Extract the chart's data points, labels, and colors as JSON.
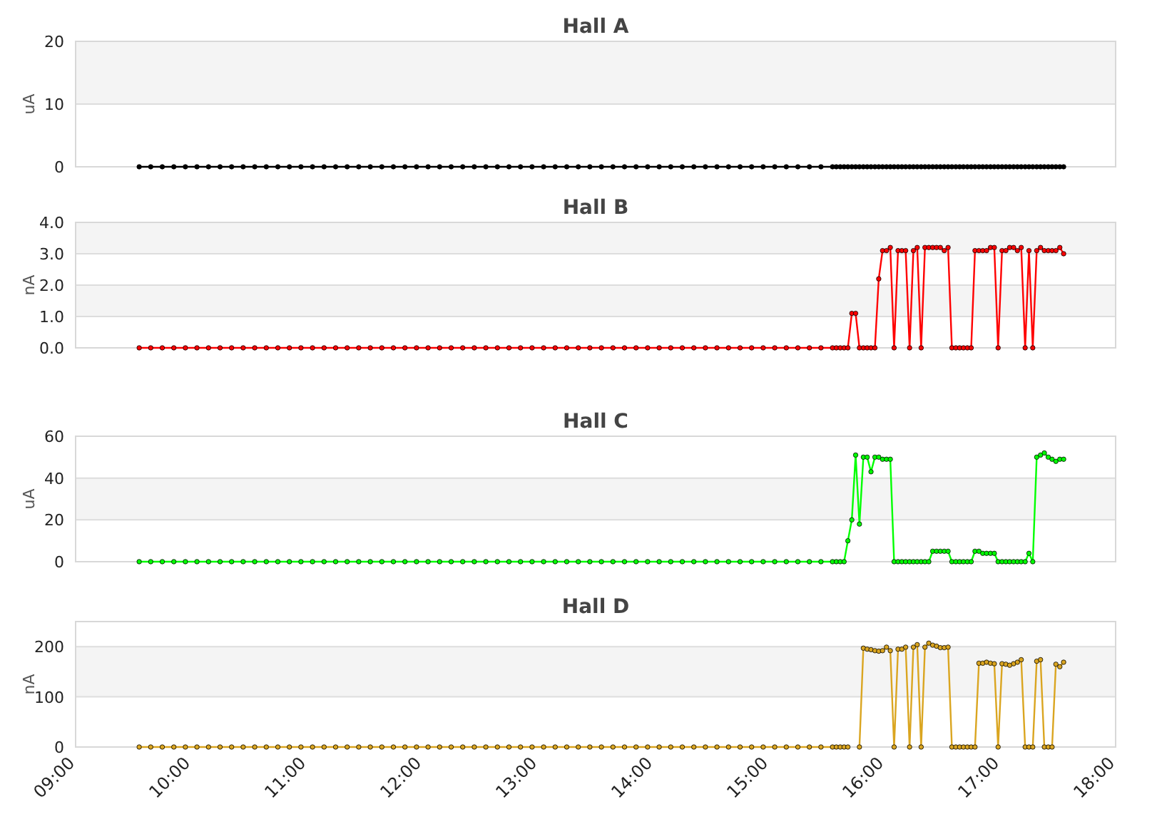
{
  "chart_data": [
    {
      "type": "line",
      "title": "Hall A",
      "ylabel": "uA",
      "xlim": [
        9,
        18
      ],
      "ylim": [
        0,
        20
      ],
      "yticks": [
        0,
        10,
        20
      ],
      "tick_labels": "y",
      "grid": "y",
      "marker": "circle",
      "x": [
        9.55,
        9.65,
        9.75,
        9.85,
        9.95,
        10.05,
        10.15,
        10.25,
        10.35,
        10.45,
        10.55,
        10.65,
        10.75,
        10.85,
        10.95,
        11.05,
        11.15,
        11.25,
        11.35,
        11.45,
        11.55,
        11.65,
        11.75,
        11.85,
        11.95,
        12.05,
        12.15,
        12.25,
        12.35,
        12.45,
        12.55,
        12.65,
        12.75,
        12.85,
        12.95,
        13.05,
        13.15,
        13.25,
        13.35,
        13.45,
        13.55,
        13.65,
        13.75,
        13.85,
        13.95,
        14.05,
        14.15,
        14.25,
        14.35,
        14.45,
        14.55,
        14.65,
        14.75,
        14.85,
        14.95,
        15.05,
        15.15,
        15.25,
        15.35,
        15.45,
        15.55,
        15.583,
        15.617,
        15.65,
        15.683,
        15.717,
        15.75,
        15.783,
        15.817,
        15.85,
        15.883,
        15.917,
        15.95,
        15.983,
        16.017,
        16.05,
        16.083,
        16.117,
        16.15,
        16.183,
        16.217,
        16.25,
        16.283,
        16.317,
        16.35,
        16.383,
        16.417,
        16.45,
        16.483,
        16.517,
        16.55,
        16.583,
        16.617,
        16.65,
        16.683,
        16.717,
        16.75,
        16.783,
        16.817,
        16.85,
        16.883,
        16.917,
        16.95,
        16.983,
        17.017,
        17.05,
        17.083,
        17.117,
        17.15,
        17.183,
        17.217,
        17.25,
        17.283,
        17.317,
        17.35,
        17.383,
        17.417,
        17.45,
        17.483,
        17.517,
        17.55
      ],
      "series": [
        {
          "color": "#000000",
          "values": [
            0,
            0,
            0,
            0,
            0,
            0,
            0,
            0,
            0,
            0,
            0,
            0,
            0,
            0,
            0,
            0,
            0,
            0,
            0,
            0,
            0,
            0,
            0,
            0,
            0,
            0,
            0,
            0,
            0,
            0,
            0,
            0,
            0,
            0,
            0,
            0,
            0,
            0,
            0,
            0,
            0,
            0,
            0,
            0,
            0,
            0,
            0,
            0,
            0,
            0,
            0,
            0,
            0,
            0,
            0,
            0,
            0,
            0,
            0,
            0,
            0,
            0,
            0,
            0,
            0,
            0,
            0,
            0,
            0,
            0,
            0,
            0,
            0,
            0,
            0,
            0,
            0,
            0,
            0,
            0,
            0,
            0,
            0,
            0,
            0,
            0,
            0,
            0,
            0,
            0,
            0,
            0,
            0,
            0,
            0,
            0,
            0,
            0,
            0,
            0,
            0,
            0,
            0,
            0,
            0,
            0,
            0,
            0,
            0,
            0,
            0,
            0,
            0,
            0,
            0,
            0,
            0,
            0,
            0,
            0,
            0
          ]
        }
      ]
    },
    {
      "type": "line",
      "title": "Hall B",
      "ylabel": "nA",
      "xlim": [
        9,
        18
      ],
      "ylim": [
        0,
        4
      ],
      "yticks": [
        {
          "value": 0,
          "label": "0.0"
        },
        {
          "value": 1,
          "label": "1.0"
        },
        {
          "value": 2,
          "label": "2.0"
        },
        {
          "value": 3,
          "label": "3.0"
        },
        {
          "value": 4,
          "label": "4.0"
        }
      ],
      "tick_labels": "y",
      "grid": "y",
      "marker": "circle",
      "x": [
        9.55,
        9.65,
        9.75,
        9.85,
        9.95,
        10.05,
        10.15,
        10.25,
        10.35,
        10.45,
        10.55,
        10.65,
        10.75,
        10.85,
        10.95,
        11.05,
        11.15,
        11.25,
        11.35,
        11.45,
        11.55,
        11.65,
        11.75,
        11.85,
        11.95,
        12.05,
        12.15,
        12.25,
        12.35,
        12.45,
        12.55,
        12.65,
        12.75,
        12.85,
        12.95,
        13.05,
        13.15,
        13.25,
        13.35,
        13.45,
        13.55,
        13.65,
        13.75,
        13.85,
        13.95,
        14.05,
        14.15,
        14.25,
        14.35,
        14.45,
        14.55,
        14.65,
        14.75,
        14.85,
        14.95,
        15.05,
        15.15,
        15.25,
        15.35,
        15.45,
        15.55,
        15.583,
        15.617,
        15.65,
        15.683,
        15.717,
        15.75,
        15.783,
        15.817,
        15.85,
        15.883,
        15.917,
        15.95,
        15.983,
        16.017,
        16.05,
        16.083,
        16.117,
        16.15,
        16.183,
        16.217,
        16.25,
        16.283,
        16.317,
        16.35,
        16.383,
        16.417,
        16.45,
        16.483,
        16.517,
        16.55,
        16.583,
        16.617,
        16.65,
        16.683,
        16.717,
        16.75,
        16.783,
        16.817,
        16.85,
        16.883,
        16.917,
        16.95,
        16.983,
        17.017,
        17.05,
        17.083,
        17.117,
        17.15,
        17.183,
        17.217,
        17.25,
        17.283,
        17.317,
        17.35,
        17.383,
        17.417,
        17.45,
        17.483,
        17.517,
        17.55
      ],
      "series": [
        {
          "color": "#ff0000",
          "values": [
            0,
            0,
            0,
            0,
            0,
            0,
            0,
            0,
            0,
            0,
            0,
            0,
            0,
            0,
            0,
            0,
            0,
            0,
            0,
            0,
            0,
            0,
            0,
            0,
            0,
            0,
            0,
            0,
            0,
            0,
            0,
            0,
            0,
            0,
            0,
            0,
            0,
            0,
            0,
            0,
            0,
            0,
            0,
            0,
            0,
            0,
            0,
            0,
            0,
            0,
            0,
            0,
            0,
            0,
            0,
            0,
            0,
            0,
            0,
            0,
            0,
            0,
            0,
            0,
            0,
            1.1,
            1.1,
            0,
            0,
            0,
            0,
            0,
            2.2,
            3.1,
            3.1,
            3.2,
            0,
            3.1,
            3.1,
            3.1,
            0,
            3.1,
            3.2,
            0,
            3.2,
            3.2,
            3.2,
            3.2,
            3.2,
            3.1,
            3.2,
            0,
            0,
            0,
            0,
            0,
            0,
            3.1,
            3.1,
            3.1,
            3.1,
            3.2,
            3.2,
            0,
            3.1,
            3.1,
            3.2,
            3.2,
            3.1,
            3.2,
            0,
            3.1,
            0,
            3.1,
            3.2,
            3.1,
            3.1,
            3.1,
            3.1,
            3.2,
            3.0
          ]
        }
      ]
    },
    {
      "type": "line",
      "title": "Hall C",
      "ylabel": "uA",
      "xlim": [
        9,
        18
      ],
      "ylim": [
        0,
        60
      ],
      "yticks": [
        0,
        20,
        40,
        60
      ],
      "tick_labels": "y",
      "grid": "y",
      "marker": "circle",
      "x": [
        9.55,
        9.65,
        9.75,
        9.85,
        9.95,
        10.05,
        10.15,
        10.25,
        10.35,
        10.45,
        10.55,
        10.65,
        10.75,
        10.85,
        10.95,
        11.05,
        11.15,
        11.25,
        11.35,
        11.45,
        11.55,
        11.65,
        11.75,
        11.85,
        11.95,
        12.05,
        12.15,
        12.25,
        12.35,
        12.45,
        12.55,
        12.65,
        12.75,
        12.85,
        12.95,
        13.05,
        13.15,
        13.25,
        13.35,
        13.45,
        13.55,
        13.65,
        13.75,
        13.85,
        13.95,
        14.05,
        14.15,
        14.25,
        14.35,
        14.45,
        14.55,
        14.65,
        14.75,
        14.85,
        14.95,
        15.05,
        15.15,
        15.25,
        15.35,
        15.45,
        15.55,
        15.583,
        15.617,
        15.65,
        15.683,
        15.717,
        15.75,
        15.783,
        15.817,
        15.85,
        15.883,
        15.917,
        15.95,
        15.983,
        16.017,
        16.05,
        16.083,
        16.117,
        16.15,
        16.183,
        16.217,
        16.25,
        16.283,
        16.317,
        16.35,
        16.383,
        16.417,
        16.45,
        16.483,
        16.517,
        16.55,
        16.583,
        16.617,
        16.65,
        16.683,
        16.717,
        16.75,
        16.783,
        16.817,
        16.85,
        16.883,
        16.917,
        16.95,
        16.983,
        17.017,
        17.05,
        17.083,
        17.117,
        17.15,
        17.183,
        17.217,
        17.25,
        17.283,
        17.317,
        17.35,
        17.383,
        17.417,
        17.45,
        17.483,
        17.517,
        17.55
      ],
      "series": [
        {
          "color": "#00ff00",
          "values": [
            0,
            0,
            0,
            0,
            0,
            0,
            0,
            0,
            0,
            0,
            0,
            0,
            0,
            0,
            0,
            0,
            0,
            0,
            0,
            0,
            0,
            0,
            0,
            0,
            0,
            0,
            0,
            0,
            0,
            0,
            0,
            0,
            0,
            0,
            0,
            0,
            0,
            0,
            0,
            0,
            0,
            0,
            0,
            0,
            0,
            0,
            0,
            0,
            0,
            0,
            0,
            0,
            0,
            0,
            0,
            0,
            0,
            0,
            0,
            0,
            0,
            0,
            0,
            0,
            10,
            20,
            51,
            18,
            50,
            50,
            43,
            50,
            50,
            49,
            49,
            49,
            0,
            0,
            0,
            0,
            0,
            0,
            0,
            0,
            0,
            0,
            5,
            5,
            5,
            5,
            5,
            0,
            0,
            0,
            0,
            0,
            0,
            5,
            5,
            4,
            4,
            4,
            4,
            0,
            0,
            0,
            0,
            0,
            0,
            0,
            0,
            4,
            0,
            50,
            51,
            52,
            50,
            49,
            48,
            49,
            49
          ]
        }
      ]
    },
    {
      "type": "line",
      "title": "Hall D",
      "ylabel": "nA",
      "xlim": [
        9,
        18
      ],
      "ylim": [
        0,
        250
      ],
      "yticks": [
        0,
        100,
        200
      ],
      "xticks": [
        {
          "value": 9,
          "label": "09:00"
        },
        {
          "value": 10,
          "label": "10:00"
        },
        {
          "value": 11,
          "label": "11:00"
        },
        {
          "value": 12,
          "label": "12:00"
        },
        {
          "value": 13,
          "label": "13:00"
        },
        {
          "value": 14,
          "label": "14:00"
        },
        {
          "value": 15,
          "label": "15:00"
        },
        {
          "value": 16,
          "label": "16:00"
        },
        {
          "value": 17,
          "label": "17:00"
        },
        {
          "value": 18,
          "label": "18:00"
        }
      ],
      "grid": "y",
      "marker": "circle",
      "x": [
        9.55,
        9.65,
        9.75,
        9.85,
        9.95,
        10.05,
        10.15,
        10.25,
        10.35,
        10.45,
        10.55,
        10.65,
        10.75,
        10.85,
        10.95,
        11.05,
        11.15,
        11.25,
        11.35,
        11.45,
        11.55,
        11.65,
        11.75,
        11.85,
        11.95,
        12.05,
        12.15,
        12.25,
        12.35,
        12.45,
        12.55,
        12.65,
        12.75,
        12.85,
        12.95,
        13.05,
        13.15,
        13.25,
        13.35,
        13.45,
        13.55,
        13.65,
        13.75,
        13.85,
        13.95,
        14.05,
        14.15,
        14.25,
        14.35,
        14.45,
        14.55,
        14.65,
        14.75,
        14.85,
        14.95,
        15.05,
        15.15,
        15.25,
        15.35,
        15.45,
        15.55,
        15.583,
        15.617,
        15.65,
        15.683,
        15.717,
        15.75,
        15.783,
        15.817,
        15.85,
        15.883,
        15.917,
        15.95,
        15.983,
        16.017,
        16.05,
        16.083,
        16.117,
        16.15,
        16.183,
        16.217,
        16.25,
        16.283,
        16.317,
        16.35,
        16.383,
        16.417,
        16.45,
        16.483,
        16.517,
        16.55,
        16.583,
        16.617,
        16.65,
        16.683,
        16.717,
        16.75,
        16.783,
        16.817,
        16.85,
        16.883,
        16.917,
        16.95,
        16.983,
        17.017,
        17.05,
        17.083,
        17.117,
        17.15,
        17.183,
        17.217,
        17.25,
        17.283,
        17.317,
        17.35,
        17.383,
        17.417,
        17.45,
        17.483,
        17.517,
        17.55
      ],
      "series": [
        {
          "color": "#daa520",
          "values": [
            0,
            0,
            0,
            0,
            0,
            0,
            0,
            0,
            0,
            0,
            0,
            0,
            0,
            0,
            0,
            0,
            0,
            0,
            0,
            0,
            0,
            0,
            0,
            0,
            0,
            0,
            0,
            0,
            0,
            0,
            0,
            0,
            0,
            0,
            0,
            0,
            0,
            0,
            0,
            0,
            0,
            0,
            0,
            0,
            0,
            0,
            0,
            0,
            0,
            0,
            0,
            0,
            0,
            0,
            0,
            0,
            0,
            0,
            0,
            0,
            0,
            0,
            0,
            0,
            0,
            null,
            null,
            0,
            197,
            195,
            194,
            192,
            191,
            192,
            199,
            192,
            0,
            195,
            195,
            199,
            0,
            199,
            204,
            0,
            199,
            207,
            203,
            201,
            198,
            198,
            199,
            0,
            0,
            0,
            0,
            0,
            0,
            0,
            167,
            167,
            169,
            167,
            166,
            0,
            166,
            165,
            163,
            166,
            169,
            174,
            0,
            0,
            0,
            171,
            174,
            0,
            0,
            0,
            165,
            160,
            169
          ]
        }
      ]
    }
  ]
}
